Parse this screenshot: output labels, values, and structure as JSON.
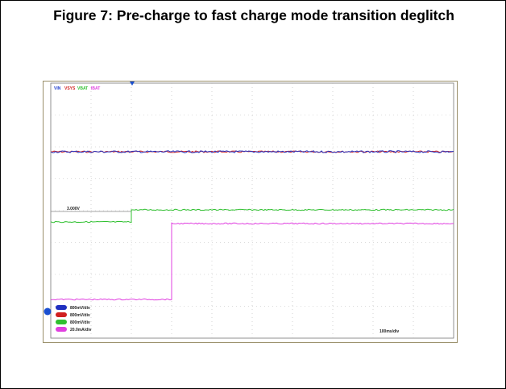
{
  "figure": {
    "title": "Figure 7: Pre-charge to fast charge mode transition deglitch"
  },
  "scope": {
    "legend": [
      "VIN",
      "VSYS",
      "VBAT",
      "IBAT"
    ],
    "reference_label": "3.000V",
    "channels": [
      "800mV/div",
      "800mV/div",
      "800mV/div",
      "20.0mA/div"
    ],
    "timebase": "100ms/div"
  }
}
